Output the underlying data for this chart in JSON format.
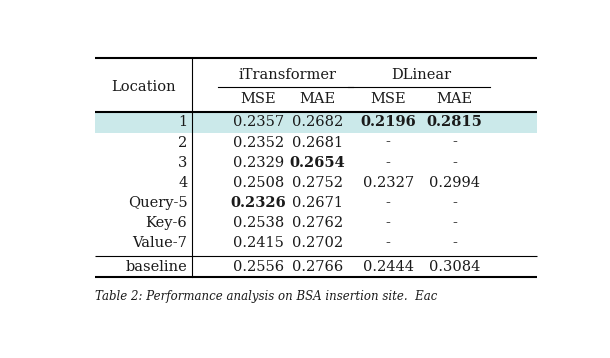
{
  "rows": [
    {
      "loc": "1",
      "itrans_mse": "0.2357",
      "itrans_mae": "0.2682",
      "dlin_mse": "0.2196",
      "dlin_mae": "0.2815",
      "bold": [
        "dlin_mse",
        "dlin_mae"
      ],
      "highlight": true
    },
    {
      "loc": "2",
      "itrans_mse": "0.2352",
      "itrans_mae": "0.2681",
      "dlin_mse": "-",
      "dlin_mae": "-",
      "bold": [],
      "highlight": false
    },
    {
      "loc": "3",
      "itrans_mse": "0.2329",
      "itrans_mae": "0.2654",
      "dlin_mse": "-",
      "dlin_mae": "-",
      "bold": [
        "itrans_mae"
      ],
      "highlight": false
    },
    {
      "loc": "4",
      "itrans_mse": "0.2508",
      "itrans_mae": "0.2752",
      "dlin_mse": "0.2327",
      "dlin_mae": "0.2994",
      "bold": [],
      "highlight": false
    },
    {
      "loc": "Query-5",
      "itrans_mse": "0.2326",
      "itrans_mae": "0.2671",
      "dlin_mse": "-",
      "dlin_mae": "-",
      "bold": [
        "itrans_mse"
      ],
      "highlight": false
    },
    {
      "loc": "Key-6",
      "itrans_mse": "0.2538",
      "itrans_mae": "0.2762",
      "dlin_mse": "-",
      "dlin_mae": "-",
      "bold": [],
      "highlight": false
    },
    {
      "loc": "Value-7",
      "itrans_mse": "0.2415",
      "itrans_mae": "0.2702",
      "dlin_mse": "-",
      "dlin_mae": "-",
      "bold": [],
      "highlight": false
    }
  ],
  "baseline": {
    "loc": "baseline",
    "itrans_mse": "0.2556",
    "itrans_mae": "0.2766",
    "dlin_mse": "0.2444",
    "dlin_mae": "0.3084",
    "bold": []
  },
  "highlight_color": "#cbe9ea",
  "background_color": "#ffffff",
  "text_color": "#1a1a1a",
  "caption": "Table 2: Performance analysis on BSA insertion site.  Eac",
  "figsize": [
    6.1,
    3.58
  ],
  "dpi": 100
}
